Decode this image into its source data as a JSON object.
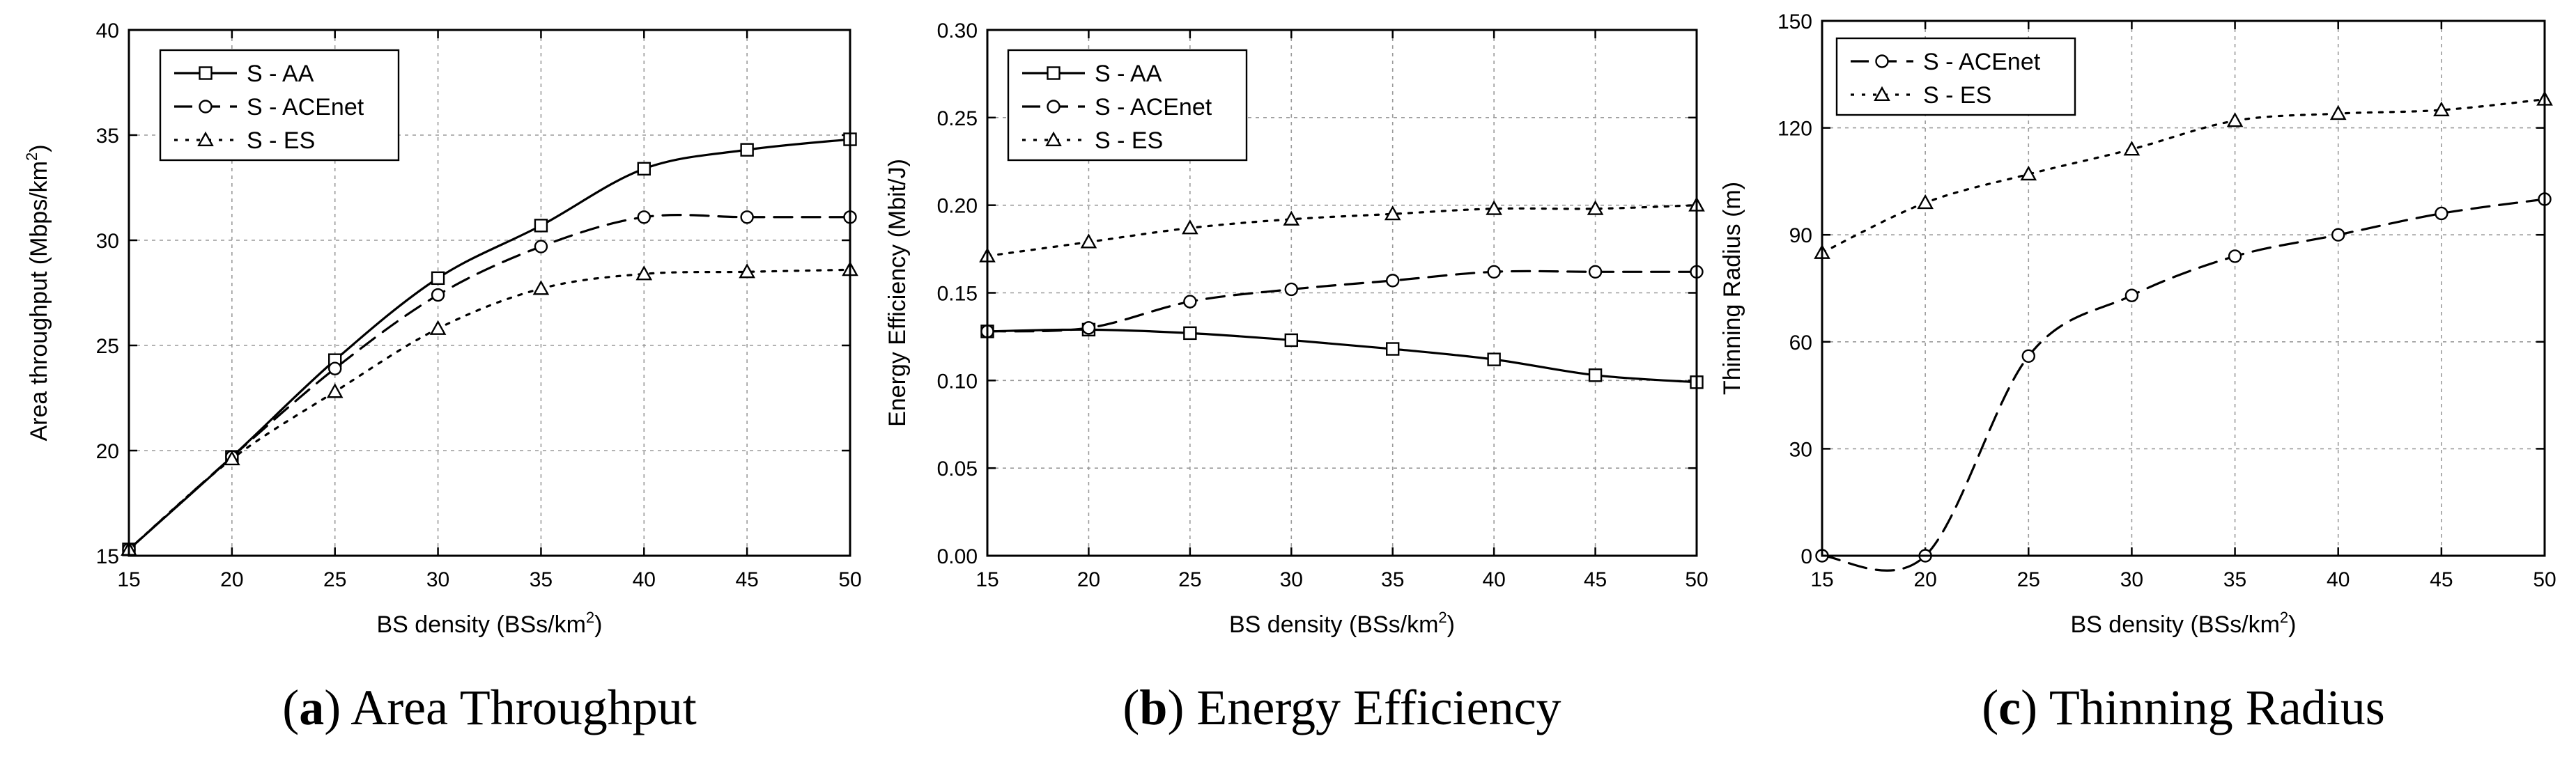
{
  "chart_data": [
    {
      "type": "line",
      "title": "",
      "caption_label": "(a)",
      "caption_text": "Area Throughput",
      "xlabel": "BS density (BSs/km",
      "xlabel_sup": "2",
      "xlabel_tail": ")",
      "ylabel": "Area throughput (Mbps/km",
      "ylabel_sup": "2",
      "ylabel_tail": ")",
      "xlim": [
        15,
        50
      ],
      "ylim": [
        15,
        40
      ],
      "xticks": [
        15,
        20,
        25,
        30,
        35,
        40,
        45,
        50
      ],
      "yticks": [
        15,
        20,
        25,
        30,
        35,
        40
      ],
      "ytick_labels": [
        "15",
        "20",
        "25",
        "30",
        "35",
        "40"
      ],
      "grid": true,
      "legend_position": "top-left",
      "x": [
        15,
        20,
        25,
        30,
        35,
        40,
        45,
        50
      ],
      "series": [
        {
          "name": "S - AA",
          "marker": "square",
          "linestyle": "solid",
          "values": [
            15.3,
            19.7,
            24.3,
            28.2,
            30.7,
            33.4,
            34.3,
            34.8
          ]
        },
        {
          "name": "S - ACEnet",
          "marker": "circle",
          "linestyle": "dashed",
          "values": [
            15.3,
            19.7,
            23.9,
            27.4,
            29.7,
            31.1,
            31.1,
            31.1
          ]
        },
        {
          "name": "S - ES",
          "marker": "triangle",
          "linestyle": "dotted",
          "values": [
            15.3,
            19.6,
            22.8,
            25.8,
            27.7,
            28.4,
            28.5,
            28.6
          ]
        }
      ]
    },
    {
      "type": "line",
      "title": "",
      "caption_label": "(b)",
      "caption_text": "Energy Efficiency",
      "xlabel": "BS density (BSs/km",
      "xlabel_sup": "2",
      "xlabel_tail": ")",
      "ylabel": "Energy Efficiency (Mbit/J)",
      "ylabel_sup": "",
      "ylabel_tail": "",
      "xlim": [
        15,
        50
      ],
      "ylim": [
        0,
        0.3
      ],
      "xticks": [
        15,
        20,
        25,
        30,
        35,
        40,
        45,
        50
      ],
      "yticks": [
        0,
        0.05,
        0.1,
        0.15,
        0.2,
        0.25,
        0.3
      ],
      "ytick_labels": [
        "0.00",
        "0.05",
        "0.10",
        "0.15",
        "0.20",
        "0.25",
        "0.30"
      ],
      "grid": true,
      "legend_position": "top-left",
      "x": [
        15,
        20,
        25,
        30,
        35,
        40,
        45,
        50
      ],
      "series": [
        {
          "name": "S - AA",
          "marker": "square",
          "linestyle": "solid",
          "values": [
            0.128,
            0.129,
            0.127,
            0.123,
            0.118,
            0.112,
            0.103,
            0.099
          ]
        },
        {
          "name": "S - ACEnet",
          "marker": "circle",
          "linestyle": "dashed",
          "values": [
            0.128,
            0.13,
            0.145,
            0.152,
            0.157,
            0.162,
            0.162,
            0.162
          ]
        },
        {
          "name": "S - ES",
          "marker": "triangle",
          "linestyle": "dotted",
          "values": [
            0.171,
            0.179,
            0.187,
            0.192,
            0.195,
            0.198,
            0.198,
            0.2
          ]
        }
      ]
    },
    {
      "type": "line",
      "title": "",
      "caption_label": "(c)",
      "caption_text": "Thinning Radius",
      "xlabel": "BS density (BSs/km",
      "xlabel_sup": "2",
      "xlabel_tail": ")",
      "ylabel": "Thinning Radius (m)",
      "ylabel_sup": "",
      "ylabel_tail": "",
      "xlim": [
        15,
        50
      ],
      "ylim": [
        0,
        150
      ],
      "xticks": [
        15,
        20,
        25,
        30,
        35,
        40,
        45,
        50
      ],
      "yticks": [
        0,
        30,
        60,
        90,
        120,
        150
      ],
      "ytick_labels": [
        "0",
        "30",
        "60",
        "90",
        "120",
        "150"
      ],
      "grid": true,
      "legend_position": "top-left",
      "x": [
        15,
        20,
        25,
        30,
        35,
        40,
        45,
        50
      ],
      "series": [
        {
          "name": "S - ACEnet",
          "marker": "circle",
          "linestyle": "dashed",
          "values": [
            0,
            0,
            56,
            73,
            84,
            90,
            96,
            100
          ]
        },
        {
          "name": "S - ES",
          "marker": "triangle",
          "linestyle": "dotted",
          "values": [
            85,
            99,
            107,
            114,
            122,
            124,
            125,
            128
          ]
        }
      ]
    }
  ]
}
